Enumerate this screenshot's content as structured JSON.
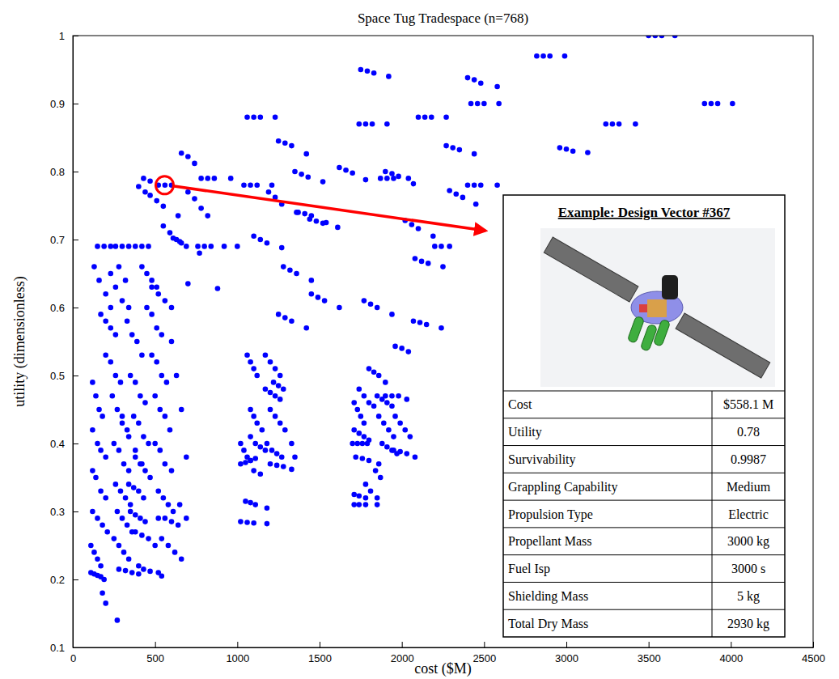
{
  "chart_data": {
    "type": "scatter",
    "title": "Space Tug Tradespace (n=768)",
    "x_label": "cost ($M)",
    "y_label": "utility (dimensionless)",
    "xlim": [
      0,
      4500
    ],
    "ylim": [
      0.1,
      1
    ],
    "xticks": [
      0,
      500,
      1000,
      1500,
      2000,
      2500,
      3000,
      3500,
      4000,
      4500
    ],
    "yticks": [
      0.1,
      0.2,
      0.3,
      0.4,
      0.5,
      0.6,
      0.7,
      0.8,
      0.9,
      1
    ],
    "grid": false,
    "color": "#0000ff",
    "marker": "circle",
    "x": [
      3500,
      3540,
      3580,
      3660,
      2820,
      2860,
      2900,
      2990,
      3840,
      3880,
      3920,
      4010,
      1750,
      1790,
      1830,
      1920,
      2400,
      2440,
      2480,
      2580,
      2420,
      2460,
      2500,
      2590,
      1060,
      1100,
      1140,
      1230,
      2100,
      2140,
      2180,
      2270,
      1740,
      1780,
      1820,
      1910,
      3240,
      3280,
      3320,
      3420,
      1250,
      1290,
      1330,
      1420,
      2270,
      2310,
      2350,
      2440,
      2960,
      3000,
      3040,
      3130,
      660,
      700,
      740,
      1620,
      1660,
      1700,
      1780,
      1350,
      1390,
      1430,
      1520,
      780,
      820,
      860,
      960,
      1870,
      1910,
      1950,
      2040,
      1900,
      1940,
      1980,
      2070,
      430,
      470,
      400,
      440,
      520,
      560,
      600,
      1040,
      1080,
      1120,
      1210,
      2400,
      2440,
      2480,
      2580,
      2290,
      2330,
      2370,
      2450,
      1190,
      1230,
      1270,
      1360,
      470,
      510,
      550,
      640,
      700,
      740,
      780,
      820,
      1370,
      1410,
      1450,
      1540,
      1440,
      1480,
      1520,
      1610,
      2020,
      2060,
      2100,
      2190,
      550,
      590,
      630,
      660,
      610,
      650,
      690,
      770,
      760,
      800,
      840,
      920,
      150,
      190,
      230,
      260,
      300,
      340,
      380,
      420,
      460,
      1000,
      2200,
      2240,
      2290,
      1100,
      1140,
      1180,
      1270,
      1280,
      1320,
      1360,
      1450,
      1450,
      1490,
      1530,
      1620,
      1770,
      1810,
      1850,
      1940,
      2080,
      2120,
      2160,
      2250,
      2070,
      2110,
      2150,
      2240,
      1250,
      1290,
      1330,
      1420,
      880,
      700,
      1960,
      2000,
      2040,
      120,
      140,
      160,
      180,
      120,
      150,
      170,
      200,
      120,
      140,
      170,
      200,
      120,
      150,
      180,
      210,
      110,
      130,
      150,
      170,
      110,
      130,
      150,
      170,
      190,
      180,
      200,
      130,
      160,
      200,
      230,
      170,
      200,
      230,
      260,
      200,
      230,
      260,
      290,
      240,
      270,
      300,
      330,
      250,
      280,
      310,
      340,
      260,
      290,
      320,
      350,
      270,
      300,
      330,
      360,
      250,
      280,
      310,
      340,
      280,
      320,
      360,
      400,
      270,
      230,
      260,
      300,
      340,
      330,
      360,
      390,
      420,
      350,
      380,
      410,
      440,
      370,
      400,
      430,
      460,
      340,
      370,
      400,
      430,
      350,
      380,
      410,
      440,
      380,
      410,
      440,
      470,
      380,
      420,
      460,
      500,
      400,
      430,
      470,
      420,
      450,
      480,
      510,
      450,
      480,
      510,
      540,
      480,
      510,
      540,
      570,
      500,
      530,
      560,
      590,
      500,
      530,
      560,
      600,
      520,
      550,
      580,
      610,
      520,
      560,
      600,
      640,
      540,
      580,
      620,
      660,
      520,
      540,
      600,
      630,
      660,
      690,
      480,
      520,
      560,
      600,
      650,
      690,
      280,
      320,
      300,
      340,
      380,
      420,
      1020,
      1040,
      1060,
      1080,
      1020,
      1050,
      1080,
      1110,
      1060,
      1080,
      1100,
      1120,
      1080,
      1100,
      1120,
      1150,
      1080,
      1110,
      1140,
      1170,
      1050,
      1080,
      1110,
      1180,
      1020,
      1060,
      1100,
      1180,
      1170,
      1200,
      1230,
      1260,
      1170,
      1200,
      1230,
      1260,
      1200,
      1230,
      1260,
      1290,
      1180,
      1210,
      1240,
      1270,
      1200,
      1240,
      1280,
      1330,
      1330,
      1350,
      1100,
      1140,
      1220,
      1250,
      1280,
      1710,
      1730,
      1750,
      1770,
      1710,
      1740,
      1770,
      1800,
      1700,
      1730,
      1760,
      1790,
      1740,
      1770,
      1800,
      1830,
      1720,
      1760,
      1800,
      1860,
      1710,
      1740,
      1780,
      1850,
      1710,
      1740,
      1780,
      1850,
      1800,
      1830,
      1860,
      1900,
      1850,
      1880,
      1910,
      1940,
      1860,
      1890,
      1920,
      1950,
      1880,
      1910,
      1940,
      1970,
      1900,
      1940,
      1980,
      2030,
      1960,
      1990,
      2020,
      2050,
      1950,
      1990,
      2030,
      2080,
      1840,
      1870,
      1780,
      1810
    ],
    "values": [
      1,
      1,
      1,
      1,
      0.97,
      0.97,
      0.97,
      0.97,
      0.9,
      0.9,
      0.9,
      0.9,
      0.95,
      0.948,
      0.945,
      0.94,
      0.938,
      0.935,
      0.93,
      0.925,
      0.9,
      0.9,
      0.9,
      0.9,
      0.88,
      0.88,
      0.88,
      0.88,
      0.88,
      0.88,
      0.88,
      0.88,
      0.87,
      0.87,
      0.87,
      0.87,
      0.87,
      0.87,
      0.87,
      0.87,
      0.845,
      0.842,
      0.838,
      0.826,
      0.838,
      0.835,
      0.832,
      0.826,
      0.835,
      0.833,
      0.83,
      0.828,
      0.827,
      0.822,
      0.812,
      0.806,
      0.802,
      0.798,
      0.788,
      0.8,
      0.796,
      0.792,
      0.785,
      0.79,
      0.79,
      0.79,
      0.79,
      0.79,
      0.79,
      0.79,
      0.79,
      0.8,
      0.797,
      0.793,
      0.782,
      0.79,
      0.786,
      0.778,
      0.77,
      0.78,
      0.78,
      0.78,
      0.78,
      0.78,
      0.78,
      0.78,
      0.78,
      0.78,
      0.78,
      0.78,
      0.772,
      0.767,
      0.762,
      0.752,
      0.77,
      0.762,
      0.752,
      0.74,
      0.765,
      0.757,
      0.749,
      0.735,
      0.77,
      0.76,
      0.746,
      0.735,
      0.74,
      0.738,
      0.735,
      0.725,
      0.73,
      0.727,
      0.724,
      0.718,
      0.728,
      0.722,
      0.716,
      0.705,
      0.72,
      0.71,
      0.7,
      0.695,
      0.702,
      0.697,
      0.69,
      0.68,
      0.69,
      0.69,
      0.69,
      0.69,
      0.69,
      0.69,
      0.69,
      0.69,
      0.69,
      0.69,
      0.69,
      0.69,
      0.69,
      0.69,
      0.69,
      0.69,
      0.69,
      0.705,
      0.7,
      0.695,
      0.688,
      0.66,
      0.655,
      0.65,
      0.64,
      0.62,
      0.615,
      0.61,
      0.6,
      0.61,
      0.605,
      0.6,
      0.59,
      0.672,
      0.668,
      0.665,
      0.66,
      0.58,
      0.578,
      0.575,
      0.57,
      0.59,
      0.585,
      0.58,
      0.57,
      0.628,
      0.635,
      0.543,
      0.54,
      0.535,
      0.49,
      0.47,
      0.45,
      0.44,
      0.42,
      0.4,
      0.39,
      0.38,
      0.36,
      0.35,
      0.33,
      0.32,
      0.3,
      0.29,
      0.28,
      0.27,
      0.25,
      0.24,
      0.23,
      0.22,
      0.21,
      0.208,
      0.206,
      0.204,
      0.2,
      0.18,
      0.165,
      0.66,
      0.64,
      0.62,
      0.6,
      0.59,
      0.58,
      0.57,
      0.56,
      0.53,
      0.52,
      0.5,
      0.49,
      0.47,
      0.45,
      0.44,
      0.42,
      0.4,
      0.39,
      0.37,
      0.36,
      0.34,
      0.33,
      0.32,
      0.31,
      0.3,
      0.29,
      0.28,
      0.27,
      0.26,
      0.25,
      0.24,
      0.23,
      0.215,
      0.213,
      0.21,
      0.208,
      0.14,
      0.65,
      0.63,
      0.61,
      0.6,
      0.58,
      0.56,
      0.55,
      0.53,
      0.5,
      0.49,
      0.47,
      0.46,
      0.44,
      0.43,
      0.41,
      0.4,
      0.34,
      0.335,
      0.33,
      0.32,
      0.3,
      0.295,
      0.29,
      0.285,
      0.38,
      0.37,
      0.36,
      0.35,
      0.27,
      0.265,
      0.26,
      0.25,
      0.22,
      0.215,
      0.212,
      0.66,
      0.65,
      0.64,
      0.63,
      0.6,
      0.59,
      0.57,
      0.56,
      0.53,
      0.52,
      0.5,
      0.49,
      0.47,
      0.45,
      0.44,
      0.42,
      0.4,
      0.39,
      0.37,
      0.36,
      0.33,
      0.32,
      0.31,
      0.3,
      0.29,
      0.29,
      0.285,
      0.28,
      0.26,
      0.25,
      0.24,
      0.23,
      0.21,
      0.205,
      0.55,
      0.5,
      0.45,
      0.38,
      0.63,
      0.62,
      0.61,
      0.6,
      0.31,
      0.29,
      0.66,
      0.64,
      0.43,
      0.41,
      0.39,
      0.37,
      0.4,
      0.39,
      0.38,
      0.375,
      0.37,
      0.372,
      0.375,
      0.378,
      0.53,
      0.52,
      0.51,
      0.5,
      0.45,
      0.44,
      0.43,
      0.42,
      0.41,
      0.4,
      0.395,
      0.39,
      0.315,
      0.313,
      0.31,
      0.305,
      0.285,
      0.284,
      0.283,
      0.282,
      0.53,
      0.52,
      0.51,
      0.5,
      0.48,
      0.475,
      0.47,
      0.465,
      0.45,
      0.44,
      0.43,
      0.42,
      0.4,
      0.39,
      0.385,
      0.38,
      0.37,
      0.368,
      0.366,
      0.362,
      0.4,
      0.38,
      0.36,
      0.355,
      0.49,
      0.485,
      0.48,
      0.46,
      0.45,
      0.44,
      0.43,
      0.42,
      0.415,
      0.41,
      0.405,
      0.4,
      0.4,
      0.4,
      0.4,
      0.48,
      0.47,
      0.46,
      0.455,
      0.38,
      0.378,
      0.375,
      0.37,
      0.325,
      0.323,
      0.32,
      0.32,
      0.31,
      0.31,
      0.31,
      0.31,
      0.51,
      0.505,
      0.5,
      0.49,
      0.47,
      0.465,
      0.46,
      0.455,
      0.44,
      0.43,
      0.42,
      0.41,
      0.4,
      0.395,
      0.39,
      0.385,
      0.47,
      0.47,
      0.47,
      0.465,
      0.44,
      0.43,
      0.42,
      0.41,
      0.39,
      0.388,
      0.385,
      0.38,
      0.36,
      0.35,
      0.34,
      0.33
    ],
    "annotation": {
      "title": "Example: Design Vector #367",
      "x": 558.1,
      "y": 0.78,
      "table": [
        [
          "Cost",
          "$558.1 M"
        ],
        [
          "Utility",
          "0.78"
        ],
        [
          "Survivability",
          "0.9987"
        ],
        [
          "Grappling Capability",
          "Medium"
        ],
        [
          "Propulsion Type",
          "Electric"
        ],
        [
          "Propellant Mass",
          "3000 kg"
        ],
        [
          "Fuel Isp",
          "3000 s"
        ],
        [
          "Shielding Mass",
          "5 kg"
        ],
        [
          "Total Dry Mass",
          "2930 kg"
        ]
      ]
    }
  }
}
